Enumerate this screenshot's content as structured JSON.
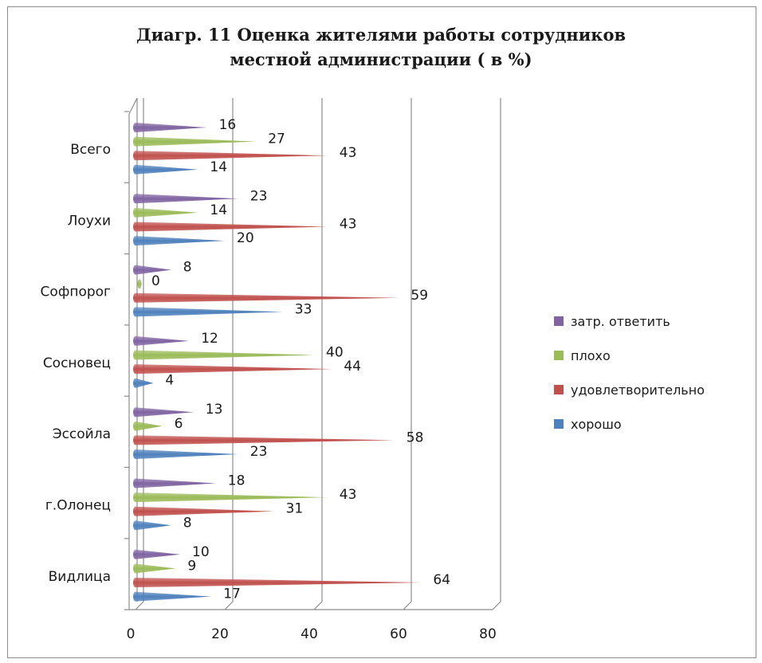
{
  "chart_data": {
    "type": "bar",
    "orientation": "horizontal",
    "title_lines": [
      "Диагр. 11 Оценка жителями работы сотрудников",
      "местной администрации ( в %)"
    ],
    "categories": [
      "Всего",
      "Лоухи",
      "Софпорог",
      "Сосновец",
      "Эссойла",
      "г.Олонец",
      "Видлица"
    ],
    "series": [
      {
        "name": "затр. ответить",
        "color": "#8064a2",
        "values": [
          16,
          23,
          8,
          12,
          13,
          18,
          10
        ]
      },
      {
        "name": "плохо",
        "color": "#9bbb59",
        "values": [
          27,
          14,
          0,
          40,
          6,
          43,
          9
        ]
      },
      {
        "name": "удовлетворительно",
        "color": "#c0504d",
        "values": [
          43,
          43,
          59,
          44,
          58,
          31,
          64
        ]
      },
      {
        "name": "хорошо",
        "color": "#4f81bd",
        "values": [
          14,
          20,
          33,
          4,
          23,
          8,
          17
        ]
      }
    ],
    "xlim": [
      0,
      80
    ],
    "x_ticks": [
      "0",
      "20",
      "40",
      "60",
      "80"
    ],
    "legend_position": "right",
    "grid": true
  }
}
